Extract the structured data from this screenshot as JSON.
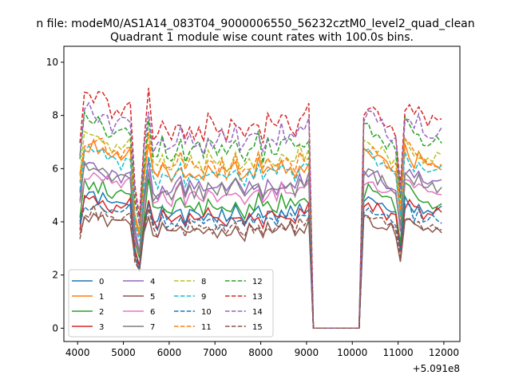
{
  "chart_data": {
    "type": "line",
    "suptitle": "n file: modeM0/AS1A14_083T04_9000006550_56232cztM0_level2_quad_clean",
    "title": "Quadrant 1 module wise count rates with 100.0s bins.",
    "xlabel": "",
    "ylabel": "",
    "x_offset_label": "+5.091e8",
    "xlim": [
      3700,
      12350
    ],
    "ylim": [
      -0.5,
      10.6
    ],
    "xticks": [
      4000,
      5000,
      6000,
      7000,
      8000,
      9000,
      10000,
      11000,
      12000
    ],
    "yticks": [
      0,
      2,
      4,
      6,
      8,
      10
    ],
    "grid": false,
    "legend_position": "lower-left",
    "x": {
      "start": 4050,
      "step": 100,
      "count": 80
    },
    "profile": {
      "seg1": [
        0.78,
        0.97,
        0.96,
        0.98,
        0.95,
        0.96,
        0.92,
        0.9,
        0.93,
        0.9,
        0.9,
        0.93
      ],
      "dip": [
        0.58,
        0.47,
        0.78,
        0.98
      ],
      "seg2": [
        0.81,
        0.79,
        0.86,
        0.82,
        0.8,
        0.84,
        0.88,
        0.8,
        0.85,
        0.82,
        0.84,
        0.8,
        0.86,
        0.83,
        0.81,
        0.85,
        0.8,
        0.84,
        0.87,
        0.82,
        0.79,
        0.85,
        0.83,
        0.88,
        0.8,
        0.86,
        0.84,
        0.82,
        0.88,
        0.85,
        0.87,
        0.83,
        0.89,
        0.86,
        0.9,
        0.93,
        0.96
      ],
      "seg3": [
        0.93,
        0.94,
        0.92,
        0.9,
        0.89,
        0.86,
        0.85,
        0.83,
        0.6,
        0.95,
        0.93,
        0.88,
        0.91,
        0.86
      ],
      "gap_value": 0.0,
      "gap_start": 9150,
      "gap_end": 10150
    },
    "series": [
      {
        "name": "0",
        "color": "#1f77b4",
        "dash": false,
        "level": 5.1,
        "jitter": 0.25,
        "seed": 1
      },
      {
        "name": "1",
        "color": "#ff7f0e",
        "dash": false,
        "level": 7.1,
        "jitter": 0.3,
        "seed": 2
      },
      {
        "name": "2",
        "color": "#2ca02c",
        "dash": false,
        "level": 5.5,
        "jitter": 0.3,
        "seed": 3
      },
      {
        "name": "3",
        "color": "#d62728",
        "dash": false,
        "level": 5.0,
        "jitter": 0.3,
        "seed": 4
      },
      {
        "name": "4",
        "color": "#9467bd",
        "dash": false,
        "level": 6.3,
        "jitter": 0.3,
        "seed": 5
      },
      {
        "name": "5",
        "color": "#8c564b",
        "dash": false,
        "level": 4.4,
        "jitter": 0.25,
        "seed": 6
      },
      {
        "name": "6",
        "color": "#e377c2",
        "dash": false,
        "level": 6.0,
        "jitter": 0.3,
        "seed": 7
      },
      {
        "name": "7",
        "color": "#7f7f7f",
        "dash": false,
        "level": 6.2,
        "jitter": 0.3,
        "seed": 8
      },
      {
        "name": "8",
        "color": "#bcbd22",
        "dash": true,
        "level": 7.5,
        "jitter": 0.3,
        "seed": 9
      },
      {
        "name": "9",
        "color": "#17becf",
        "dash": true,
        "level": 6.9,
        "jitter": 0.3,
        "seed": 10
      },
      {
        "name": "10",
        "color": "#1f77b4",
        "dash": true,
        "level": 4.8,
        "jitter": 0.25,
        "seed": 11
      },
      {
        "name": "11",
        "color": "#ff7f0e",
        "dash": true,
        "level": 7.3,
        "jitter": 0.3,
        "seed": 12
      },
      {
        "name": "12",
        "color": "#2ca02c",
        "dash": true,
        "level": 8.1,
        "jitter": 0.35,
        "seed": 13
      },
      {
        "name": "13",
        "color": "#d62728",
        "dash": true,
        "level": 9.0,
        "jitter": 0.4,
        "seed": 14
      },
      {
        "name": "14",
        "color": "#9467bd",
        "dash": true,
        "level": 8.5,
        "jitter": 0.35,
        "seed": 15
      },
      {
        "name": "15",
        "color": "#8c564b",
        "dash": true,
        "level": 4.5,
        "jitter": 0.25,
        "seed": 16
      }
    ]
  }
}
